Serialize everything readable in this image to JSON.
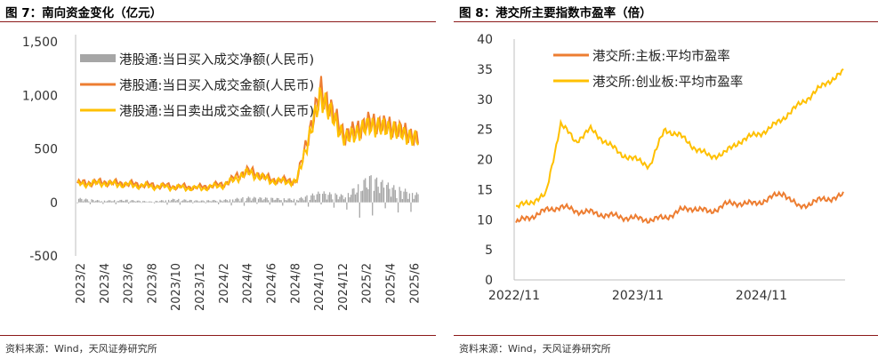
{
  "colors": {
    "gray": "#a6a6a6",
    "orange": "#ed7d31",
    "gold": "#ffc000",
    "rule": "#8c1a1a"
  },
  "left": {
    "title": "图 7：南向资金变化（亿元）",
    "source": "资料来源：Wind，天风证券研究所"
  },
  "right": {
    "title": "图 8：港交所主要指数市盈率（倍）",
    "source": "资料来源：Wind，天风证券研究所"
  },
  "chart_data": [
    {
      "type": "line",
      "title": "图 7：南向资金变化（亿元）",
      "ylim": [
        -500,
        1500
      ],
      "yticks": [
        "1,500",
        "1,000",
        "500",
        "0",
        "-500"
      ],
      "ytick_values": [
        1500,
        1000,
        500,
        0,
        -500
      ],
      "categories": [
        "2023/2",
        "2023/4",
        "2023/6",
        "2023/8",
        "2023/10",
        "2023/12",
        "2024/2",
        "2024/4",
        "2024/6",
        "2024/8",
        "2024/10",
        "2024/12",
        "2025/2",
        "2025/4",
        "2025/6"
      ],
      "legend_position": "top-right",
      "series": [
        {
          "name": "港股通:当日买入成交净额(人民币)",
          "style": "bar",
          "color": "#a6a6a6",
          "values": [
            25,
            10,
            15,
            5,
            20,
            10,
            15,
            30,
            25,
            20,
            60,
            40,
            150,
            90,
            50
          ]
        },
        {
          "name": "港股通:当日买入成交金额(人民币)",
          "style": "line",
          "color": "#ed7d31",
          "values": [
            180,
            190,
            175,
            160,
            150,
            140,
            170,
            300,
            210,
            200,
            1050,
            620,
            750,
            700,
            600
          ]
        },
        {
          "name": "港股通:当日卖出成交金额(人民币)",
          "style": "line",
          "color": "#ffc000",
          "values": [
            170,
            180,
            165,
            150,
            140,
            130,
            160,
            280,
            200,
            190,
            1000,
            590,
            720,
            680,
            580
          ]
        }
      ]
    },
    {
      "type": "line",
      "title": "图 8：港交所主要指数市盈率（倍）",
      "ylim": [
        0,
        40
      ],
      "yticks": [
        "40",
        "35",
        "30",
        "25",
        "20",
        "15",
        "10",
        "5",
        "0"
      ],
      "ytick_values": [
        40,
        35,
        30,
        25,
        20,
        15,
        10,
        5,
        0
      ],
      "xticks": [
        "2022/11",
        "2023/11",
        "2024/11"
      ],
      "legend_position": "top-center",
      "series": [
        {
          "name": "港交所:主板:平均市盈率",
          "color": "#ed7d31",
          "values": [
            9.5,
            10.5,
            11.5,
            12.2,
            11.5,
            11.2,
            10.8,
            10.5,
            10.2,
            10.0,
            10.3,
            11.5,
            12.0,
            11.2,
            12.5,
            12.8,
            12.6,
            13.5,
            14.5,
            12.0,
            13.0,
            13.5,
            14.0
          ]
        },
        {
          "name": "港交所:创业板:平均市盈率",
          "color": "#ffc000",
          "values": [
            12,
            13,
            14,
            26,
            23,
            25,
            23,
            21,
            20,
            19,
            25,
            24,
            22,
            20.5,
            21,
            23,
            24,
            25,
            27,
            29,
            31,
            33,
            34.5
          ]
        }
      ]
    }
  ]
}
